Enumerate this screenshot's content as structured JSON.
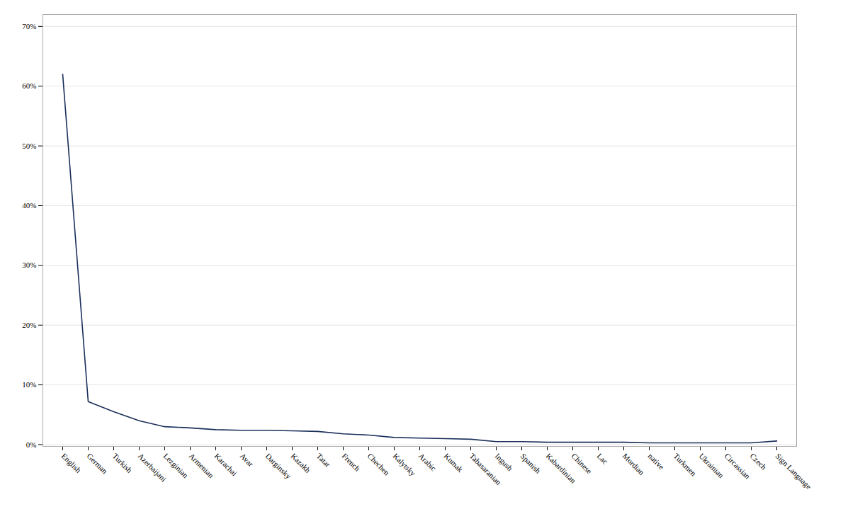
{
  "chart_data": {
    "type": "line",
    "categories": [
      "English",
      "German",
      "Turkish",
      "Azerbaijani",
      "Lezginian",
      "Armenian",
      "Karachai",
      "Avar",
      "Darginsky",
      "Kazakh",
      "Tatar",
      "French",
      "Chechen",
      "Kalytsky",
      "Arabic",
      "Kumak",
      "Tabasaranian",
      "Ingush",
      "Spanish",
      "Kabardinian",
      "Chinese",
      "Lac",
      "Mordian",
      "native",
      "Turkmen",
      "Ukrainian",
      "Circassian",
      "Czech",
      "Sign Language"
    ],
    "values": [
      0.62,
      0.072,
      0.055,
      0.04,
      0.03,
      0.028,
      0.025,
      0.024,
      0.024,
      0.023,
      0.022,
      0.018,
      0.016,
      0.012,
      0.011,
      0.01,
      0.009,
      0.005,
      0.005,
      0.004,
      0.004,
      0.004,
      0.004,
      0.003,
      0.003,
      0.003,
      0.003,
      0.003,
      0.006
    ],
    "color": "#1a2f5a",
    "ylim": [
      -0.003,
      0.72
    ],
    "yticks": [
      {
        "value": 0.0,
        "label": "0%"
      },
      {
        "value": 0.1,
        "label": "10%"
      },
      {
        "value": 0.2,
        "label": "20%"
      },
      {
        "value": 0.3,
        "label": "30%"
      },
      {
        "value": 0.4,
        "label": "40%"
      },
      {
        "value": 0.5,
        "label": "50%"
      },
      {
        "value": 0.6,
        "label": "60%"
      },
      {
        "value": 0.7,
        "label": "70%"
      }
    ],
    "grid": true
  }
}
